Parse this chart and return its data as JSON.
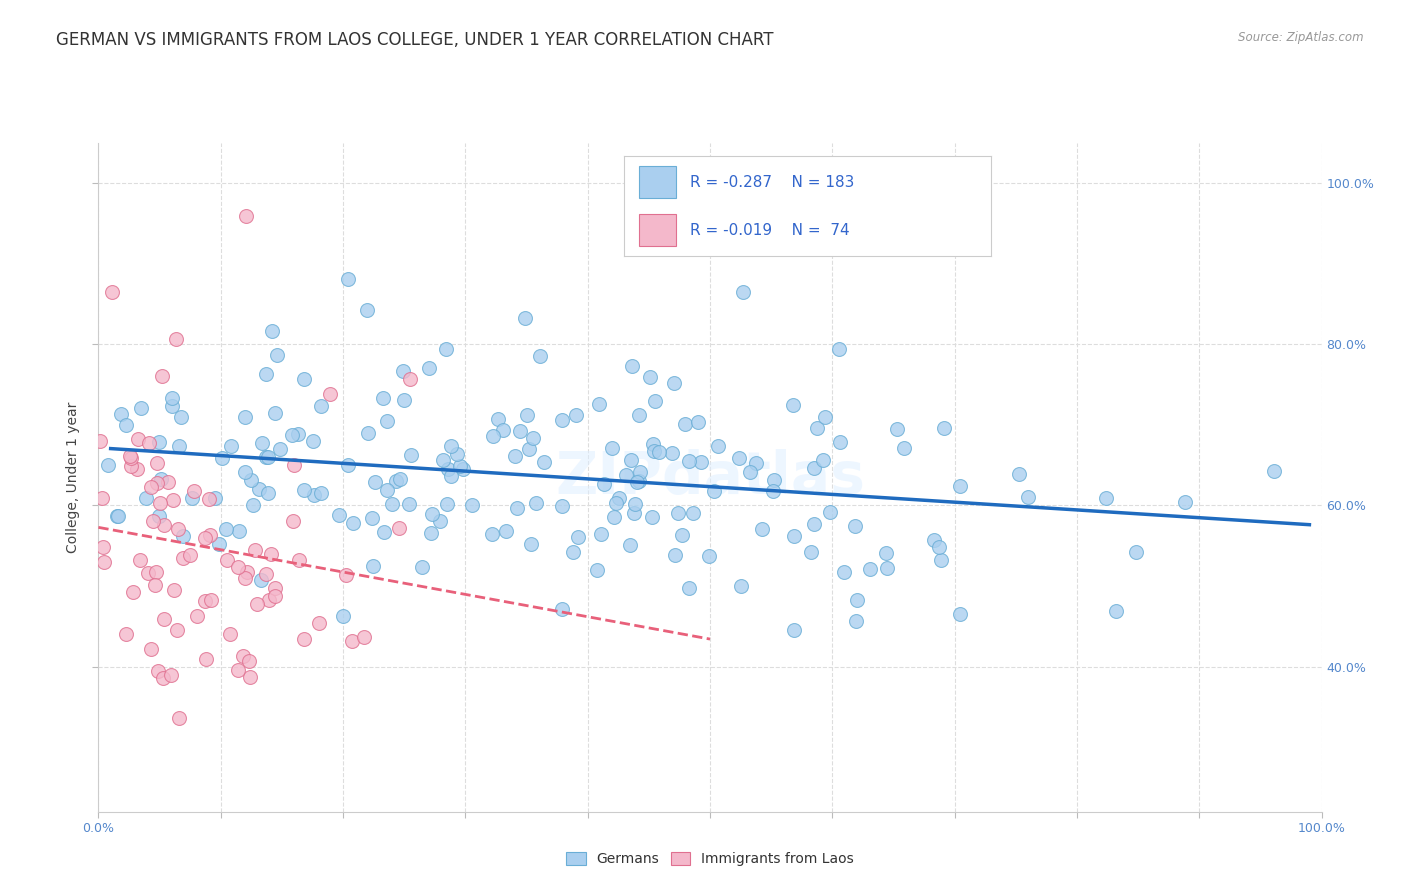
{
  "title": "GERMAN VS IMMIGRANTS FROM LAOS COLLEGE, UNDER 1 YEAR CORRELATION CHART",
  "source": "Source: ZipAtlas.com",
  "ylabel": "College, Under 1 year",
  "xlabel": "",
  "xlim": [
    0.0,
    1.0
  ],
  "ylim": [
    0.22,
    1.05
  ],
  "ytick_labels_right": [
    "40.0%",
    "60.0%",
    "80.0%",
    "100.0%"
  ],
  "yticks_right": [
    0.4,
    0.6,
    0.8,
    1.0
  ],
  "german_color": "#aacfef",
  "german_edge": "#6aaed6",
  "laos_color": "#f4b8cb",
  "laos_edge": "#e07090",
  "trend_german_color": "#1f6bbf",
  "trend_laos_color": "#e8607a",
  "n_german": 183,
  "n_laos": 74,
  "R_german": -0.287,
  "R_laos": -0.019,
  "seed": 12,
  "background_color": "#ffffff",
  "grid_color": "#dddddd",
  "title_fontsize": 12,
  "axis_fontsize": 10,
  "tick_fontsize": 9,
  "legend_fontsize": 12,
  "watermark": "ZIPdatlas"
}
